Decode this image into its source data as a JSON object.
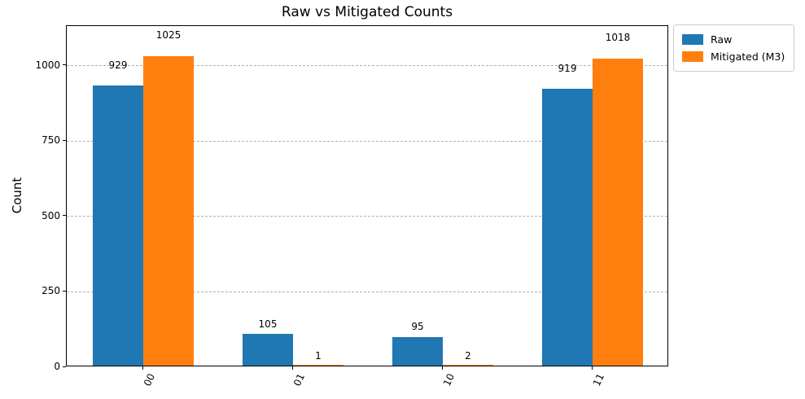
{
  "chart_data": {
    "type": "bar",
    "title": "Raw vs Mitigated Counts",
    "xlabel": "",
    "ylabel": "Count",
    "categories": [
      "00",
      "01",
      "10",
      "11"
    ],
    "series": [
      {
        "name": "Raw",
        "color": "#1f77b4",
        "values": [
          929,
          105,
          95,
          919
        ]
      },
      {
        "name": "Mitigated (M3)",
        "color": "#ff7f0e",
        "values": [
          1025,
          1,
          2,
          1018
        ]
      }
    ],
    "bar_value_labels_shown": true,
    "yticks": [
      0,
      250,
      500,
      750,
      1000
    ],
    "ylim": [
      0,
      1131
    ],
    "grid": "horizontal-dashed",
    "grid_color": "#b0b0b0",
    "background_color": "#ffffff",
    "text_color": "#000000",
    "legend_position": "outside-upper-right",
    "xtick_rotation_degrees": 65
  }
}
